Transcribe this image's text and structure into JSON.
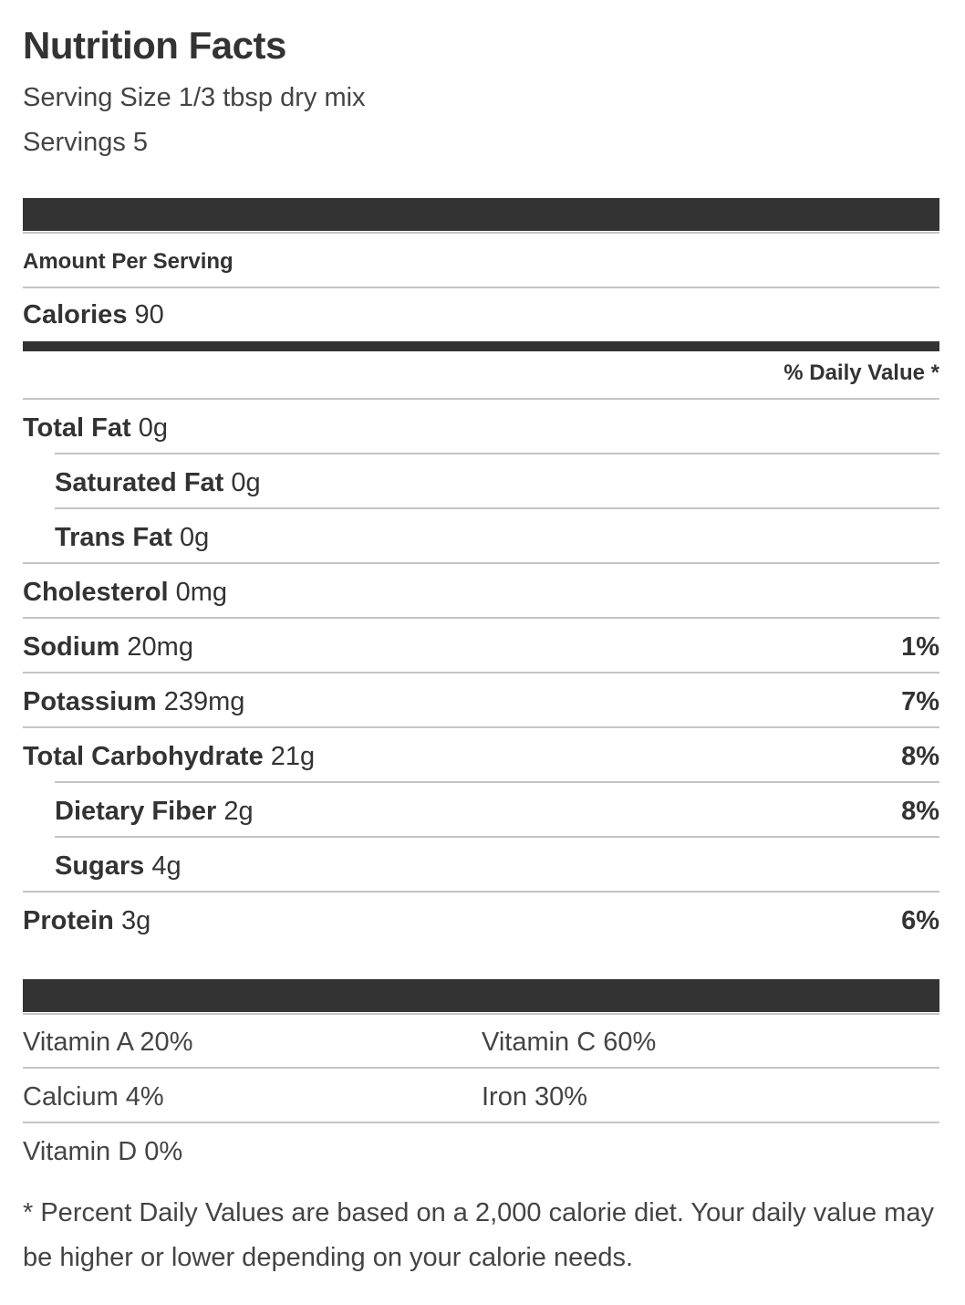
{
  "label": {
    "title": "Nutrition Facts",
    "serving_size": "Serving Size 1/3 tbsp dry mix",
    "servings": "Servings 5",
    "amount_per_serving": "Amount Per Serving",
    "calories_label": "Calories",
    "calories_value": "90",
    "daily_value_header": "% Daily Value *",
    "nutrients": [
      {
        "name": "Total Fat",
        "amount": "0g",
        "dv": ""
      },
      {
        "name": "Saturated Fat",
        "amount": "0g",
        "dv": ""
      },
      {
        "name": "Trans Fat",
        "amount": "0g",
        "dv": ""
      },
      {
        "name": "Cholesterol",
        "amount": "0mg",
        "dv": ""
      },
      {
        "name": "Sodium",
        "amount": "20mg",
        "dv": "1%"
      },
      {
        "name": "Potassium",
        "amount": "239mg",
        "dv": "7%"
      },
      {
        "name": "Total Carbohydrate",
        "amount": "21g",
        "dv": "8%"
      },
      {
        "name": "Dietary Fiber",
        "amount": "2g",
        "dv": "8%"
      },
      {
        "name": "Sugars",
        "amount": "4g",
        "dv": ""
      },
      {
        "name": "Protein",
        "amount": "3g",
        "dv": "6%"
      }
    ],
    "vitamins": [
      {
        "text": "Vitamin A 20%"
      },
      {
        "text": "Vitamin C 60%"
      },
      {
        "text": "Calcium 4%"
      },
      {
        "text": "Iron 30%"
      },
      {
        "text": "Vitamin D 0%"
      }
    ],
    "footnote": "* Percent Daily Values are based on a 2,000 calorie diet. Your daily value may be higher or lower depending on your calorie needs."
  },
  "colors": {
    "text": "#333333",
    "bar": "#333333",
    "rule": "#c4c4c4"
  }
}
